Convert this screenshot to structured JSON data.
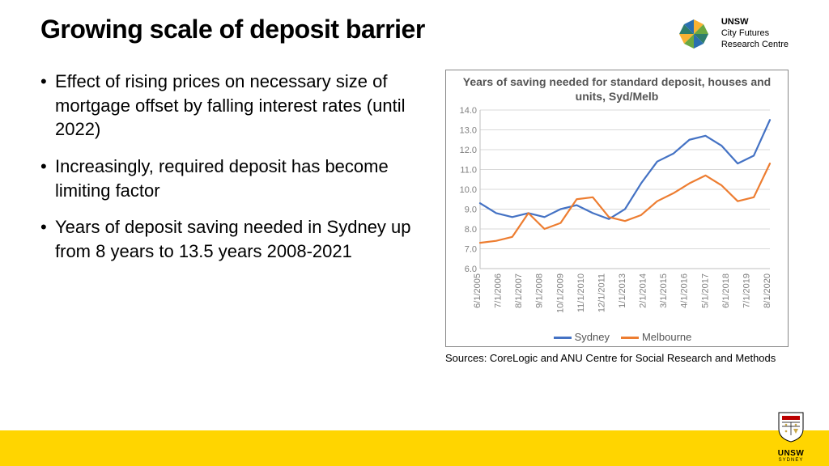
{
  "title": "Growing scale of deposit barrier",
  "logo": {
    "line1": "UNSW",
    "line2": "City Futures",
    "line3": "Research Centre"
  },
  "bullets": [
    "Effect of rising prices on necessary size of mortgage offset by falling interest rates (until 2022)",
    "Increasingly, required deposit has become limiting factor",
    "Years of deposit saving needed in Sydney up from 8 years to 13.5 years 2008-2021"
  ],
  "chart": {
    "type": "line",
    "title": "Years of saving needed for standard deposit, houses and units, Syd/Melb",
    "ylim": [
      6.0,
      14.0
    ],
    "ytick_step": 1.0,
    "yticks": [
      "6.0",
      "7.0",
      "8.0",
      "9.0",
      "10.0",
      "11.0",
      "12.0",
      "13.0",
      "14.0"
    ],
    "xlabels": [
      "6/1/2005",
      "7/1/2006",
      "8/1/2007",
      "9/1/2008",
      "10/1/2009",
      "11/1/2010",
      "12/1/2011",
      "1/1/2013",
      "2/1/2014",
      "3/1/2015",
      "4/1/2016",
      "5/1/2017",
      "6/1/2018",
      "7/1/2019",
      "8/1/2020"
    ],
    "series": [
      {
        "name": "Sydney",
        "color": "#4472c4",
        "values": [
          9.3,
          8.8,
          8.6,
          8.8,
          8.6,
          9.0,
          9.2,
          8.8,
          8.5,
          9.0,
          10.3,
          11.4,
          11.8,
          12.5,
          12.7,
          12.2,
          11.3,
          11.7,
          13.5
        ]
      },
      {
        "name": "Melbourne",
        "color": "#ed7d31",
        "values": [
          7.3,
          7.4,
          7.6,
          8.8,
          8.0,
          8.3,
          9.5,
          9.6,
          8.6,
          8.4,
          8.7,
          9.4,
          9.8,
          10.3,
          10.7,
          10.2,
          9.4,
          9.6,
          11.3
        ]
      }
    ],
    "grid_color": "#d9d9d9",
    "axis_color": "#bfbfbf",
    "label_color": "#7f7f7f",
    "label_fontsize": 11,
    "title_fontsize": 14,
    "line_width": 2.2,
    "background": "#ffffff"
  },
  "sources": "Sources: CoreLogic and ANU Centre for Social Research and Methods",
  "badge": {
    "label": "UNSW",
    "sub": "SYDNEY"
  }
}
